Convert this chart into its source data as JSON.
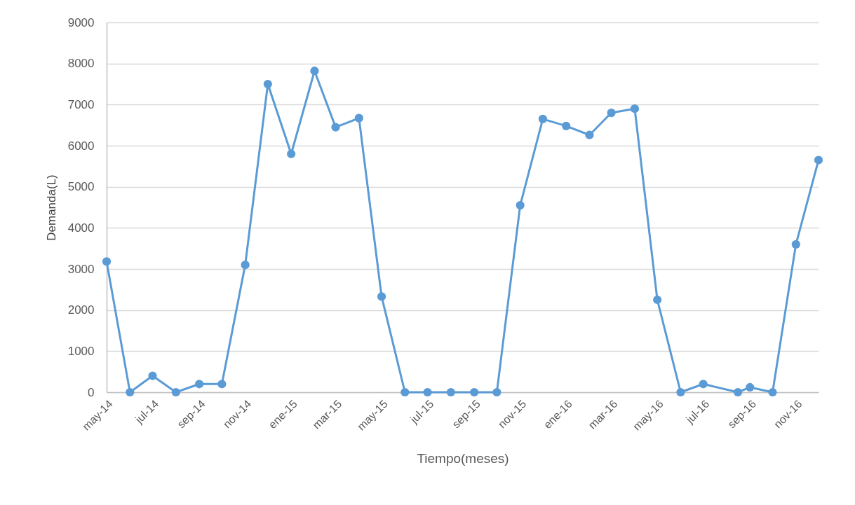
{
  "chart_data": {
    "type": "line",
    "xlabel": "Tiempo(meses)",
    "ylabel": "Demanda(L)",
    "x": [
      "2014-05",
      "2014-06",
      "2014-07",
      "2014-08",
      "2014-09",
      "2014-10",
      "2014-11",
      "2014-12",
      "2015-01",
      "2015-02",
      "2015-03",
      "2015-04",
      "2015-05",
      "2015-06",
      "2015-07",
      "2015-08",
      "2015-09",
      "2015-10",
      "2015-11",
      "2015-12",
      "2016-01",
      "2016-02",
      "2016-03",
      "2016-04",
      "2016-05",
      "2016-06",
      "2016-07",
      "2016-08-16",
      "2016-09",
      "2016-10",
      "2016-11",
      "2016-12"
    ],
    "series": [
      {
        "color": "#5b9bd5",
        "values": [
          3180,
          0,
          400,
          0,
          200,
          200,
          3100,
          7500,
          5800,
          7820,
          6450,
          6670,
          2330,
          0,
          0,
          0,
          0,
          0,
          4550,
          6650,
          6480,
          6260,
          6800,
          6900,
          2250,
          0,
          200,
          0,
          120,
          0,
          3600,
          5650
        ]
      }
    ],
    "xlim": [
      "2014-05",
      "2016-12"
    ],
    "xticks": [
      {
        "value": "2014-05",
        "label": "may-14"
      },
      {
        "value": "2014-07",
        "label": "jul-14"
      },
      {
        "value": "2014-09",
        "label": "sep-14"
      },
      {
        "value": "2014-11",
        "label": "nov-14"
      },
      {
        "value": "2015-01",
        "label": "ene-15"
      },
      {
        "value": "2015-03",
        "label": "mar-15"
      },
      {
        "value": "2015-05",
        "label": "may-15"
      },
      {
        "value": "2015-07",
        "label": "jul-15"
      },
      {
        "value": "2015-09",
        "label": "sep-15"
      },
      {
        "value": "2015-11",
        "label": "nov-15"
      },
      {
        "value": "2016-01",
        "label": "ene-16"
      },
      {
        "value": "2016-03",
        "label": "mar-16"
      },
      {
        "value": "2016-05",
        "label": "may-16"
      },
      {
        "value": "2016-07",
        "label": "jul-16"
      },
      {
        "value": "2016-09",
        "label": "sep-16"
      },
      {
        "value": "2016-11",
        "label": "nov-16"
      }
    ],
    "ylim": [
      0,
      9000
    ],
    "yticks": [
      0,
      1000,
      2000,
      3000,
      4000,
      5000,
      6000,
      7000,
      8000,
      9000
    ],
    "grid": "y",
    "marker": "circle",
    "line_style": "solid",
    "legend": false
  }
}
